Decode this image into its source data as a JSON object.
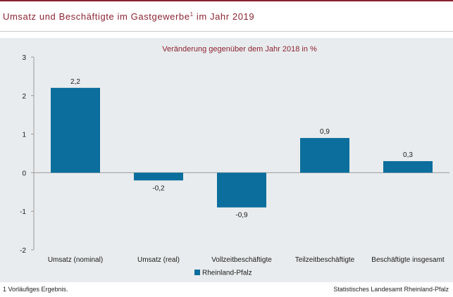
{
  "header": {
    "title": "Umsatz und Beschäftigte im Gastgewerbe",
    "title_sup": "1",
    "title_suffix": " im Jahr 2019"
  },
  "chart_data": {
    "type": "bar",
    "subtitle": "Veränderung  gegenüber dem Jahr 2018 in %",
    "categories": [
      "Umsatz (nominal)",
      "Umsatz (real)",
      "Vollzeitbeschäftigte",
      "Teilzeitbeschäftigte",
      "Beschäftigte insgesamt"
    ],
    "series": [
      {
        "name": "Rheinland-Pfalz",
        "values": [
          2.2,
          -0.2,
          -0.9,
          0.9,
          0.3
        ],
        "labels": [
          "2,2",
          "-0,2",
          "-0,9",
          "0,9",
          "0,3"
        ]
      }
    ],
    "ylim": [
      -2,
      3
    ],
    "yticks": [
      3,
      2,
      1,
      0,
      -1,
      -2
    ],
    "ytick_labels": [
      "3",
      "2",
      "1",
      "0",
      "-1",
      "-2"
    ],
    "legend_position": "bottom-center",
    "colors": {
      "bar": "#0b6e9c",
      "subtitle": "#8a2432",
      "panel": "#e9ecee",
      "axis": "#9a9a9a"
    }
  },
  "footer": {
    "footnote": "1 Vorläufiges  Ergebnis.",
    "source": "Statistisches Landesamt Rheinland-Pfalz"
  }
}
